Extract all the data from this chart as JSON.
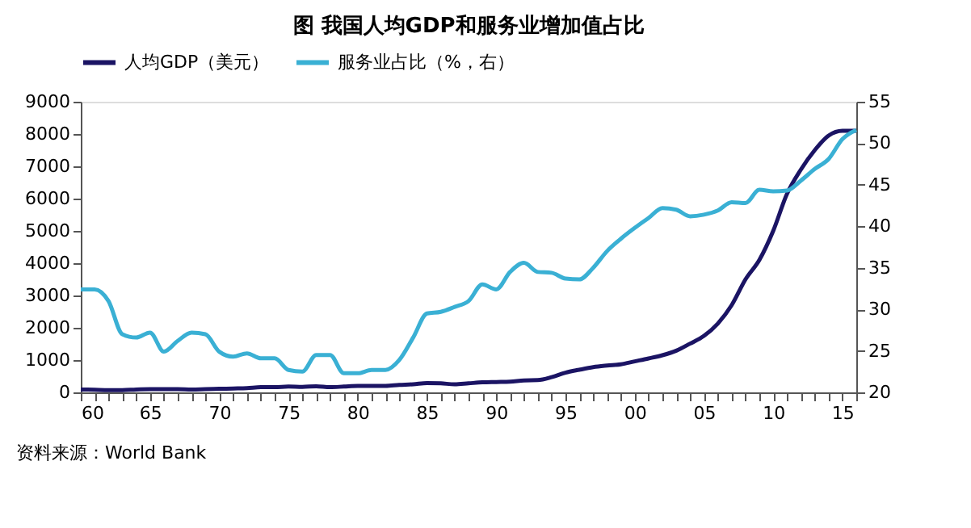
{
  "chart_data": {
    "type": "line",
    "title": "图 我国人均GDP和服务业增加值占比",
    "annotations": [
      "资料来源：World Bank"
    ],
    "x": [
      1960,
      1961,
      1962,
      1963,
      1964,
      1965,
      1966,
      1967,
      1968,
      1969,
      1970,
      1971,
      1972,
      1973,
      1974,
      1975,
      1976,
      1977,
      1978,
      1979,
      1980,
      1981,
      1982,
      1983,
      1984,
      1985,
      1986,
      1987,
      1988,
      1989,
      1990,
      1991,
      1992,
      1993,
      1994,
      1995,
      1996,
      1997,
      1998,
      1999,
      2000,
      2001,
      2002,
      2003,
      2004,
      2005,
      2006,
      2007,
      2008,
      2009,
      2010,
      2011,
      2012,
      2013,
      2014,
      2015,
      2016
    ],
    "xlim": [
      1960,
      2016
    ],
    "xticks": [
      {
        "value": 1960,
        "label": "60"
      },
      {
        "value": 1961,
        "label": null
      },
      {
        "value": 1962,
        "label": null
      },
      {
        "value": 1963,
        "label": null
      },
      {
        "value": 1964,
        "label": null
      },
      {
        "value": 1965,
        "label": "65"
      },
      {
        "value": 1966,
        "label": null
      },
      {
        "value": 1967,
        "label": null
      },
      {
        "value": 1968,
        "label": null
      },
      {
        "value": 1969,
        "label": null
      },
      {
        "value": 1970,
        "label": "70"
      },
      {
        "value": 1971,
        "label": null
      },
      {
        "value": 1972,
        "label": null
      },
      {
        "value": 1973,
        "label": null
      },
      {
        "value": 1974,
        "label": null
      },
      {
        "value": 1975,
        "label": "75"
      },
      {
        "value": 1976,
        "label": null
      },
      {
        "value": 1977,
        "label": null
      },
      {
        "value": 1978,
        "label": null
      },
      {
        "value": 1979,
        "label": null
      },
      {
        "value": 1980,
        "label": "80"
      },
      {
        "value": 1981,
        "label": null
      },
      {
        "value": 1982,
        "label": null
      },
      {
        "value": 1983,
        "label": null
      },
      {
        "value": 1984,
        "label": null
      },
      {
        "value": 1985,
        "label": "85"
      },
      {
        "value": 1986,
        "label": null
      },
      {
        "value": 1987,
        "label": null
      },
      {
        "value": 1988,
        "label": null
      },
      {
        "value": 1989,
        "label": null
      },
      {
        "value": 1990,
        "label": "90"
      },
      {
        "value": 1991,
        "label": null
      },
      {
        "value": 1992,
        "label": null
      },
      {
        "value": 1993,
        "label": null
      },
      {
        "value": 1994,
        "label": null
      },
      {
        "value": 1995,
        "label": "95"
      },
      {
        "value": 1996,
        "label": null
      },
      {
        "value": 1997,
        "label": null
      },
      {
        "value": 1998,
        "label": null
      },
      {
        "value": 1999,
        "label": null
      },
      {
        "value": 2000,
        "label": "00"
      },
      {
        "value": 2001,
        "label": null
      },
      {
        "value": 2002,
        "label": null
      },
      {
        "value": 2003,
        "label": null
      },
      {
        "value": 2004,
        "label": null
      },
      {
        "value": 2005,
        "label": "05"
      },
      {
        "value": 2006,
        "label": null
      },
      {
        "value": 2007,
        "label": null
      },
      {
        "value": 2008,
        "label": null
      },
      {
        "value": 2009,
        "label": null
      },
      {
        "value": 2010,
        "label": "10"
      },
      {
        "value": 2011,
        "label": null
      },
      {
        "value": 2012,
        "label": null
      },
      {
        "value": 2013,
        "label": null
      },
      {
        "value": 2014,
        "label": null
      },
      {
        "value": 2015,
        "label": "15"
      },
      {
        "value": 2016,
        "label": null
      }
    ],
    "ylim": [
      0,
      9000
    ],
    "yticks": [
      0,
      1000,
      2000,
      3000,
      4000,
      5000,
      6000,
      7000,
      8000,
      9000
    ],
    "y2lim": [
      20,
      55
    ],
    "y2ticks": [
      20,
      25,
      30,
      35,
      40,
      45,
      50,
      55
    ],
    "grid": false,
    "legend": "top",
    "series": [
      {
        "name": "人均GDP（美元）",
        "color": "#1b1464",
        "values": [
          90,
          80,
          70,
          70,
          90,
          100,
          100,
          100,
          90,
          100,
          110,
          120,
          130,
          160,
          160,
          180,
          170,
          190,
          160,
          180,
          200,
          200,
          200,
          230,
          250,
          290,
          280,
          250,
          280,
          310,
          320,
          330,
          370,
          380,
          470,
          610,
          700,
          780,
          830,
          870,
          960,
          1050,
          1150,
          1290,
          1510,
          1750,
          2130,
          2700,
          3500,
          4100,
          5000,
          6150,
          6900,
          7500,
          7950,
          8100,
          8100
        ]
      },
      {
        "name": "服务业占比（%，右）",
        "color": "#3ab0d4",
        "axis": "y2",
        "values": [
          32.4,
          32.4,
          31,
          27,
          26.6,
          27.2,
          24.9,
          26.2,
          27.2,
          27,
          24.9,
          24.3,
          24.7,
          24.1,
          24.1,
          22.7,
          22.5,
          24.5,
          24.5,
          22.3,
          22.3,
          22.7,
          22.7,
          23.9,
          26.6,
          29.5,
          29.7,
          30.3,
          31,
          33,
          32.4,
          34.5,
          35.6,
          34.5,
          34.4,
          33.7,
          33.6,
          35,
          37,
          38.5,
          39.8,
          41,
          42.2,
          42,
          41.2,
          41.4,
          41.9,
          42.9,
          42.8,
          44.4,
          44.2,
          44.3,
          45.5,
          46.9,
          48.1,
          50.5,
          51.6
        ]
      }
    ]
  }
}
